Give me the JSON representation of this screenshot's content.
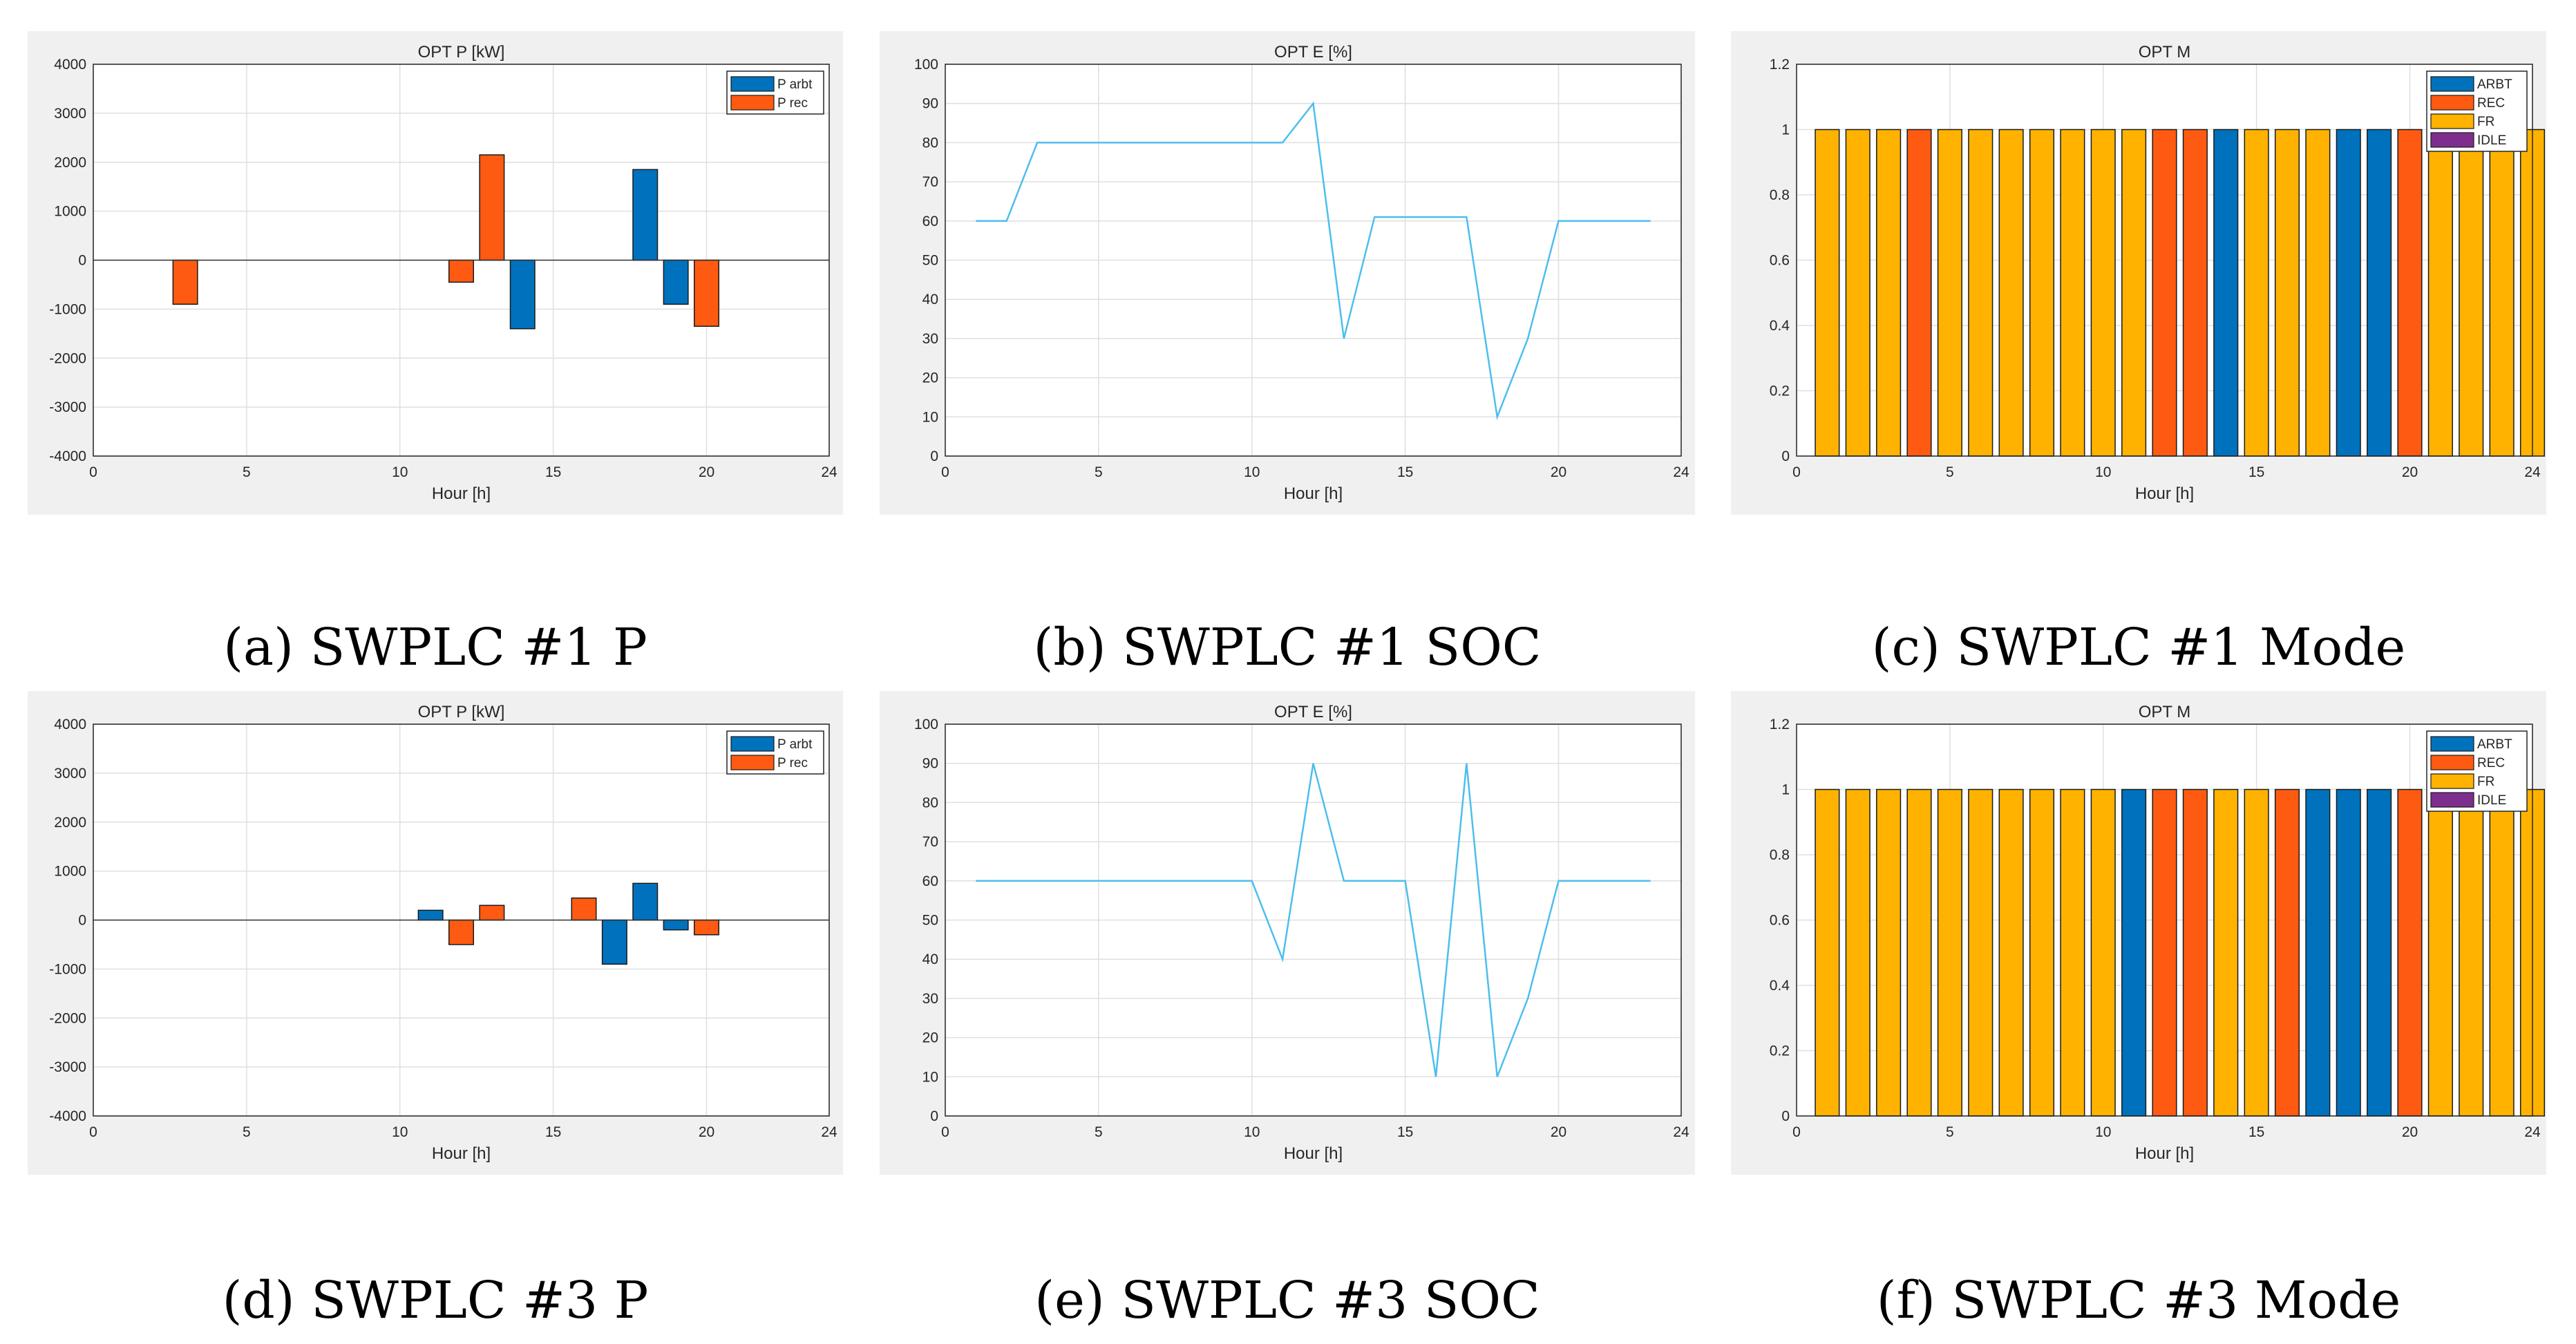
{
  "colors": {
    "arbt": "#0072BD",
    "rec": "#FF5A12",
    "fr": "#FFB300",
    "idle": "#7E2F8E",
    "line": "#4DBEEE",
    "grid": "#dfdfdf"
  },
  "captions": {
    "a": "(a) SWPLC #1 P",
    "b": "(b) SWPLC #1 SOC",
    "c": "(c) SWPLC #1 Mode",
    "d": "(d) SWPLC #3 P",
    "e": "(e) SWPLC #3 SOC",
    "f": "(f) SWPLC #3 Mode"
  },
  "chart_data": [
    {
      "id": "a",
      "type": "bar",
      "title": "OPT P [kW]",
      "xlabel": "Hour [h]",
      "ylabel": "",
      "xlim": [
        0,
        24
      ],
      "ylim": [
        -4000,
        4000
      ],
      "xticks": [
        0,
        5,
        10,
        15,
        20,
        24
      ],
      "yticks": [
        -4000,
        -3000,
        -2000,
        -1000,
        0,
        1000,
        2000,
        3000,
        4000
      ],
      "legend": [
        "P arbt",
        "P rec"
      ],
      "legend_position": "top-right",
      "series": [
        {
          "name": "P arbt",
          "points": [
            [
              14,
              -1400
            ],
            [
              18,
              1850
            ],
            [
              19,
              -900
            ]
          ]
        },
        {
          "name": "P rec",
          "points": [
            [
              3,
              -900
            ],
            [
              12,
              -450
            ],
            [
              13,
              2150
            ],
            [
              20,
              -1350
            ]
          ]
        }
      ]
    },
    {
      "id": "b",
      "type": "line",
      "title": "OPT E [%]",
      "xlabel": "Hour [h]",
      "ylabel": "",
      "xlim": [
        0,
        24
      ],
      "ylim": [
        0,
        100
      ],
      "xticks": [
        0,
        5,
        10,
        15,
        20,
        24
      ],
      "yticks": [
        0,
        10,
        20,
        30,
        40,
        50,
        60,
        70,
        80,
        90,
        100
      ],
      "x": [
        1,
        2,
        3,
        4,
        5,
        6,
        7,
        8,
        9,
        10,
        11,
        12,
        13,
        14,
        15,
        16,
        17,
        18,
        19,
        20,
        21,
        22,
        23
      ],
      "values": [
        60,
        60,
        80,
        80,
        80,
        80,
        80,
        80,
        80,
        80,
        80,
        90,
        30,
        61,
        61,
        61,
        61,
        10,
        30,
        60,
        60,
        60,
        60
      ]
    },
    {
      "id": "c",
      "type": "bar",
      "title": "OPT M",
      "xlabel": "Hour [h]",
      "ylabel": "",
      "xlim": [
        0,
        24
      ],
      "ylim": [
        0,
        1.2
      ],
      "xticks": [
        0,
        5,
        10,
        15,
        20,
        24
      ],
      "yticks": [
        0,
        0.2,
        0.4,
        0.6,
        0.8,
        1,
        1.2
      ],
      "legend": [
        "ARBT",
        "REC",
        "FR",
        "IDLE"
      ],
      "legend_position": "top-right",
      "x": [
        1,
        2,
        3,
        4,
        5,
        6,
        7,
        8,
        9,
        10,
        11,
        12,
        13,
        14,
        15,
        16,
        17,
        18,
        19,
        20,
        21,
        22,
        23,
        24
      ],
      "values": [
        1,
        1,
        1,
        1,
        1,
        1,
        1,
        1,
        1,
        1,
        1,
        1,
        1,
        1,
        1,
        1,
        1,
        1,
        1,
        1,
        1,
        1,
        1,
        1
      ],
      "modes": [
        "FR",
        "FR",
        "FR",
        "REC",
        "FR",
        "FR",
        "FR",
        "FR",
        "FR",
        "FR",
        "FR",
        "REC",
        "REC",
        "ARBT",
        "FR",
        "FR",
        "FR",
        "ARBT",
        "ARBT",
        "REC",
        "FR",
        "FR",
        "FR",
        "FR"
      ]
    },
    {
      "id": "d",
      "type": "bar",
      "title": "OPT P [kW]",
      "xlabel": "Hour [h]",
      "ylabel": "",
      "xlim": [
        0,
        24
      ],
      "ylim": [
        -4000,
        4000
      ],
      "xticks": [
        0,
        5,
        10,
        15,
        20,
        24
      ],
      "yticks": [
        -4000,
        -3000,
        -2000,
        -1000,
        0,
        1000,
        2000,
        3000,
        4000
      ],
      "legend": [
        "P arbt",
        "P rec"
      ],
      "legend_position": "top-right",
      "series": [
        {
          "name": "P arbt",
          "points": [
            [
              11,
              200
            ],
            [
              17,
              -900
            ],
            [
              18,
              750
            ],
            [
              19,
              -200
            ]
          ]
        },
        {
          "name": "P rec",
          "points": [
            [
              12,
              -500
            ],
            [
              13,
              300
            ],
            [
              16,
              450
            ],
            [
              20,
              -300
            ]
          ]
        }
      ]
    },
    {
      "id": "e",
      "type": "line",
      "title": "OPT E [%]",
      "xlabel": "Hour [h]",
      "ylabel": "",
      "xlim": [
        0,
        24
      ],
      "ylim": [
        0,
        100
      ],
      "xticks": [
        0,
        5,
        10,
        15,
        20,
        24
      ],
      "yticks": [
        0,
        10,
        20,
        30,
        40,
        50,
        60,
        70,
        80,
        90,
        100
      ],
      "x": [
        1,
        2,
        3,
        4,
        5,
        6,
        7,
        8,
        9,
        10,
        11,
        12,
        13,
        14,
        15,
        16,
        17,
        18,
        19,
        20,
        21,
        22,
        23
      ],
      "values": [
        60,
        60,
        60,
        60,
        60,
        60,
        60,
        60,
        60,
        60,
        40,
        90,
        60,
        60,
        60,
        10,
        90,
        10,
        30,
        60,
        60,
        60,
        60
      ]
    },
    {
      "id": "f",
      "type": "bar",
      "title": "OPT M",
      "xlabel": "Hour [h]",
      "ylabel": "",
      "xlim": [
        0,
        24
      ],
      "ylim": [
        0,
        1.2
      ],
      "xticks": [
        0,
        5,
        10,
        15,
        20,
        24
      ],
      "yticks": [
        0,
        0.2,
        0.4,
        0.6,
        0.8,
        1,
        1.2
      ],
      "legend": [
        "ARBT",
        "REC",
        "FR",
        "IDLE"
      ],
      "legend_position": "top-right",
      "x": [
        1,
        2,
        3,
        4,
        5,
        6,
        7,
        8,
        9,
        10,
        11,
        12,
        13,
        14,
        15,
        16,
        17,
        18,
        19,
        20,
        21,
        22,
        23,
        24
      ],
      "values": [
        1,
        1,
        1,
        1,
        1,
        1,
        1,
        1,
        1,
        1,
        1,
        1,
        1,
        1,
        1,
        1,
        1,
        1,
        1,
        1,
        1,
        1,
        1,
        1
      ],
      "modes": [
        "FR",
        "FR",
        "FR",
        "FR",
        "FR",
        "FR",
        "FR",
        "FR",
        "FR",
        "FR",
        "ARBT",
        "REC",
        "REC",
        "FR",
        "FR",
        "REC",
        "ARBT",
        "ARBT",
        "ARBT",
        "REC",
        "FR",
        "FR",
        "FR",
        "FR"
      ]
    }
  ]
}
